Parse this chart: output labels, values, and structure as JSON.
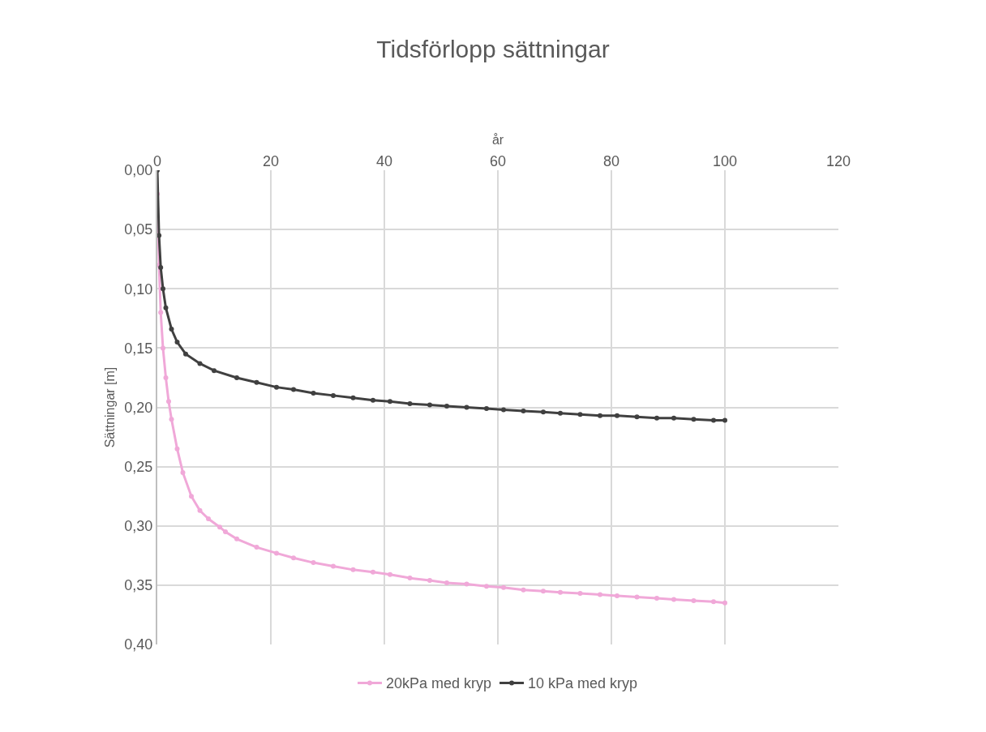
{
  "chart_data": {
    "type": "line",
    "title": "Tidsförlopp sättningar",
    "xlabel": "år",
    "ylabel": "Sättningar [m]",
    "xlim": [
      0,
      120
    ],
    "xticks": [
      0,
      20,
      40,
      60,
      80,
      100,
      120
    ],
    "ylim": [
      0.4,
      0.0
    ],
    "yticks": [
      {
        "value": 0.0,
        "label": "0,00"
      },
      {
        "value": 0.05,
        "label": "0,05"
      },
      {
        "value": 0.1,
        "label": "0,10"
      },
      {
        "value": 0.15,
        "label": "0,15"
      },
      {
        "value": 0.2,
        "label": "0,20"
      },
      {
        "value": 0.25,
        "label": "0,25"
      },
      {
        "value": 0.3,
        "label": "0,30"
      },
      {
        "value": 0.35,
        "label": "0,35"
      },
      {
        "value": 0.4,
        "label": "0,40"
      }
    ],
    "grid": true,
    "legend": "bottom",
    "marker": "circle",
    "line_style": "solid",
    "series": [
      {
        "name": "20kPa med kryp",
        "color": "#f0a8d8",
        "x": [
          0,
          0.3,
          0.6,
          1,
          1.5,
          2,
          2.5,
          3.5,
          4.5,
          6,
          7.5,
          9,
          11,
          12,
          14,
          17.5,
          21,
          24,
          27.5,
          31,
          34.5,
          38,
          41,
          44.5,
          48,
          51,
          54.5,
          58,
          61,
          64.5,
          68,
          71,
          74.5,
          78,
          81,
          84.5,
          88,
          91,
          94.5,
          98,
          100
        ],
        "values": [
          0.02,
          0.08,
          0.12,
          0.15,
          0.175,
          0.195,
          0.21,
          0.235,
          0.255,
          0.275,
          0.287,
          0.294,
          0.301,
          0.305,
          0.311,
          0.318,
          0.323,
          0.327,
          0.331,
          0.334,
          0.337,
          0.339,
          0.341,
          0.344,
          0.346,
          0.348,
          0.349,
          0.351,
          0.352,
          0.354,
          0.355,
          0.356,
          0.357,
          0.358,
          0.359,
          0.36,
          0.361,
          0.362,
          0.363,
          0.364,
          0.365
        ]
      },
      {
        "name": "10 kPa med kryp",
        "color": "#404040",
        "x": [
          0,
          0.3,
          0.6,
          1,
          1.5,
          2.5,
          3.5,
          5,
          7.5,
          10,
          14,
          17.5,
          21,
          24,
          27.5,
          31,
          34.5,
          38,
          41,
          44.5,
          48,
          51,
          54.5,
          58,
          61,
          64.5,
          68,
          71,
          74.5,
          78,
          81,
          84.5,
          88,
          91,
          94.5,
          98,
          100
        ],
        "values": [
          0.0,
          0.055,
          0.082,
          0.1,
          0.116,
          0.134,
          0.145,
          0.155,
          0.163,
          0.169,
          0.175,
          0.179,
          0.183,
          0.185,
          0.188,
          0.19,
          0.192,
          0.194,
          0.195,
          0.197,
          0.198,
          0.199,
          0.2,
          0.201,
          0.202,
          0.203,
          0.204,
          0.205,
          0.206,
          0.207,
          0.207,
          0.208,
          0.209,
          0.209,
          0.21,
          0.211,
          0.211
        ]
      }
    ]
  }
}
